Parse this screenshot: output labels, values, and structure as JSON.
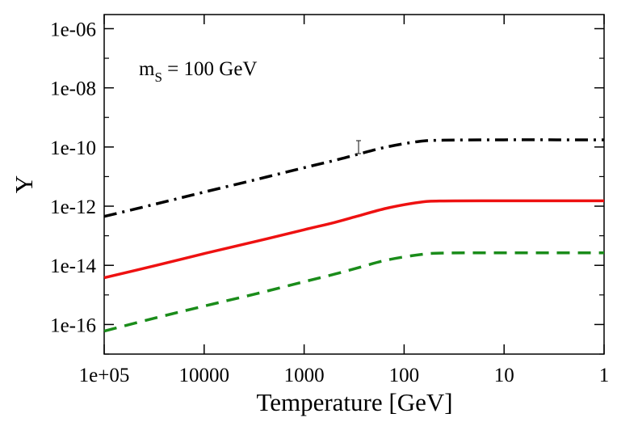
{
  "chart_data": {
    "type": "line",
    "title": "",
    "xlabel": "Temperature [GeV]",
    "ylabel": "Y",
    "x_scale": "log",
    "x_reversed": true,
    "y_scale": "log",
    "xlim": [
      100000,
      1
    ],
    "ylim": [
      1e-17,
      3e-06
    ],
    "grid": false,
    "x_ticks": [
      {
        "value": 100000,
        "label": "1e+05"
      },
      {
        "value": 10000,
        "label": "10000"
      },
      {
        "value": 1000,
        "label": "1000"
      },
      {
        "value": 100,
        "label": "100"
      },
      {
        "value": 10,
        "label": "10"
      },
      {
        "value": 1,
        "label": "1"
      }
    ],
    "y_ticks": [
      {
        "value": 1e-06,
        "label": "1e-06"
      },
      {
        "value": 1e-08,
        "label": "1e-08"
      },
      {
        "value": 1e-10,
        "label": "1e-10"
      },
      {
        "value": 1e-12,
        "label": "1e-12"
      },
      {
        "value": 1e-14,
        "label": "1e-14"
      },
      {
        "value": 1e-16,
        "label": "1e-16"
      }
    ],
    "annotation": {
      "main": "m",
      "sub": "S",
      "rest": " = 100 GeV"
    },
    "series": [
      {
        "style": "dash-dot",
        "color": "#000000",
        "x": [
          100000,
          30000,
          10000,
          3000,
          1000,
          500,
          300,
          150,
          70,
          40,
          10,
          3,
          1
        ],
        "y": [
          4.5e-13,
          1.2e-12,
          3e-12,
          8e-12,
          2e-11,
          3.5e-11,
          5.5e-11,
          1e-10,
          1.55e-10,
          1.7e-10,
          1.75e-10,
          1.75e-10,
          1.75e-10
        ]
      },
      {
        "style": "solid",
        "color": "#ee1111",
        "x": [
          100000,
          30000,
          10000,
          3000,
          1000,
          500,
          300,
          150,
          70,
          40,
          10,
          3,
          1
        ],
        "y": [
          3.8e-15,
          1e-14,
          2.5e-14,
          6.5e-14,
          1.6e-13,
          2.8e-13,
          4.5e-13,
          8.5e-13,
          1.35e-12,
          1.5e-12,
          1.52e-12,
          1.52e-12,
          1.52e-12
        ]
      },
      {
        "style": "dashed",
        "color": "#1a8c1a",
        "x": [
          100000,
          30000,
          10000,
          3000,
          1000,
          500,
          300,
          150,
          70,
          40,
          10,
          3,
          1
        ],
        "y": [
          6e-17,
          1.7e-16,
          4.2e-16,
          1.1e-15,
          2.8e-15,
          5e-15,
          8e-15,
          1.5e-14,
          2.3e-14,
          2.6e-14,
          2.65e-14,
          2.65e-14,
          2.65e-14
        ]
      }
    ]
  }
}
